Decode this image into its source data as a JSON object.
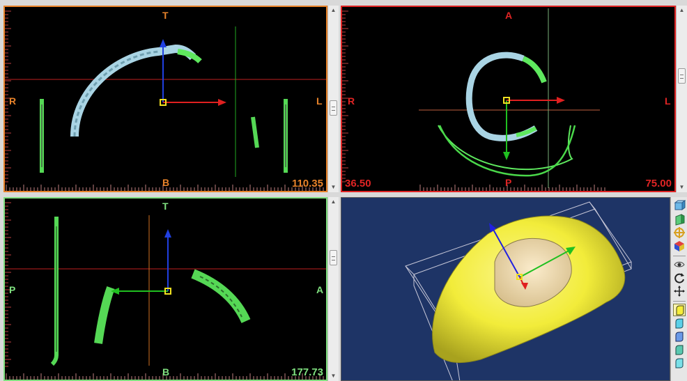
{
  "views": {
    "coronal": {
      "label_top": "T",
      "label_bottom": "B",
      "label_left": "R",
      "label_right": "L",
      "value_right": "110.35",
      "border_color": "#e8832a",
      "label_color": "#e8832a"
    },
    "axial": {
      "label_top": "A",
      "label_bottom": "P",
      "label_left": "R",
      "label_right": "L",
      "value_left": "36.50",
      "value_right": "75.00",
      "border_color": "#e02424",
      "label_color": "#e02424"
    },
    "sagittal": {
      "label_top": "T",
      "label_bottom": "B",
      "label_left": "P",
      "label_right": "A",
      "value_right": "177.73",
      "border_color": "#7fe07f",
      "label_color": "#7fe07f"
    },
    "render3d": {
      "background": "#1e3466",
      "surface_color": "#f2ec3a",
      "cut_color": "#f1dda7"
    }
  },
  "toolbar": {
    "icons": [
      "box-view-icon",
      "box-side-icon",
      "axes-move-icon",
      "cube-color-icon",
      "eye-icon",
      "rotate-icon",
      "pan-icon",
      "surface-yellow-icon",
      "surface-cyan-icon",
      "surface-blue-icon",
      "surface-teal-icon",
      "surface-cyan-2-icon"
    ]
  },
  "scrollbars": {
    "up_glyph": "▲",
    "down_glyph": "▼"
  }
}
